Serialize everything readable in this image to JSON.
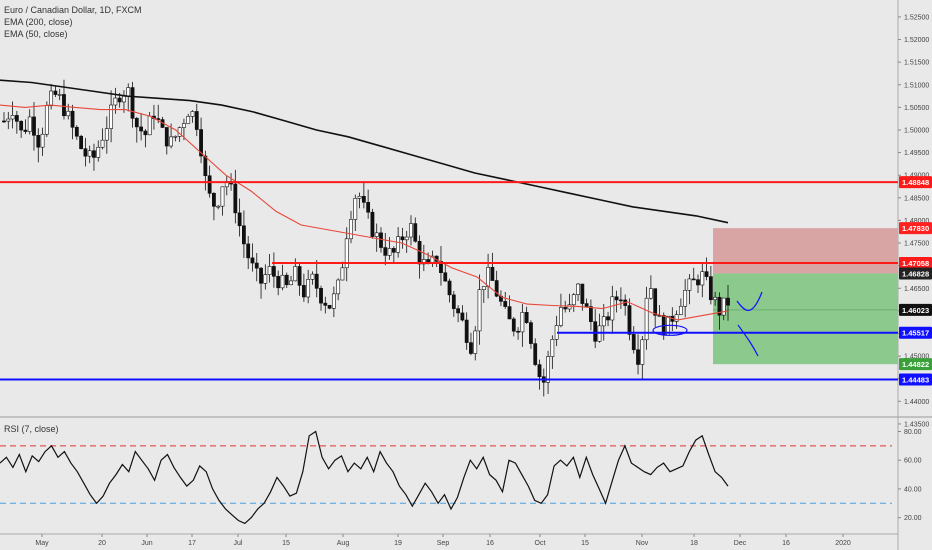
{
  "title": "Euro / Canadian Dollar, 1D, FXCM",
  "indicators": [
    "EMA (200, close)",
    "EMA (50, close)"
  ],
  "rsi_label": "RSI (7, close)",
  "colors": {
    "background": "#e9e9e9",
    "red_line": "#ff1a1a",
    "blue_line": "#1010ff",
    "ema200": "#111111",
    "ema50": "#e8473a",
    "stop_zone": "#d9a4a4",
    "target_zone": "#8cc98c",
    "rsi_upper": "#e03030",
    "rsi_lower": "#4aa0e0"
  },
  "chart_data": {
    "type": "candlestick",
    "ylim": [
      1.4372,
      1.5283
    ],
    "y_ticks": [
      "1.52500",
      "1.52000",
      "1.51500",
      "1.51000",
      "1.50500",
      "1.50000",
      "1.49500",
      "1.49000",
      "1.48500",
      "1.48000",
      "1.47500",
      "1.47000",
      "1.46500",
      "1.46000",
      "1.45500",
      "1.45000",
      "1.44500",
      "1.44000",
      "1.43500"
    ],
    "x_ticks": [
      "May",
      "20",
      "Jun",
      "17",
      "Jul",
      "15",
      "Aug",
      "19",
      "Sep",
      "16",
      "Oct",
      "15",
      "Nov",
      "18",
      "Dec",
      "16",
      "2020"
    ],
    "levels": [
      {
        "price": 1.48848,
        "label": "1.48848",
        "color": "red"
      },
      {
        "price": 1.47058,
        "label": "1.47058",
        "color": "red"
      },
      {
        "price": 1.45517,
        "label": "1.45517",
        "color": "blue"
      },
      {
        "price": 1.44483,
        "label": "1.44483",
        "color": "blue"
      }
    ],
    "position": {
      "stop": 1.4783,
      "stop_label": "1.47830",
      "entry": 1.46828,
      "entry_label": "1.46828",
      "target": 1.44822,
      "target_label": "1.44822"
    },
    "last_price": 1.46023,
    "last_price_label": "1.46023",
    "close_path": [
      1.502,
      1.505,
      1.499,
      1.503,
      1.497,
      1.506,
      1.508,
      1.504,
      1.499,
      1.495,
      1.493,
      1.498,
      1.503,
      1.508,
      1.509,
      1.501,
      1.499,
      1.504,
      1.499,
      1.497,
      1.501,
      1.505,
      1.501,
      1.486,
      1.483,
      1.49,
      1.485,
      1.476,
      1.47,
      1.466,
      1.469,
      1.467,
      1.465,
      1.468,
      1.464,
      1.467,
      1.463,
      1.461,
      1.466,
      1.48,
      1.487,
      1.481,
      1.477,
      1.474,
      1.472,
      1.476,
      1.479,
      1.472,
      1.469,
      1.472,
      1.466,
      1.461,
      1.457,
      1.452,
      1.466,
      1.468,
      1.463,
      1.458,
      1.456,
      1.461,
      1.451,
      1.443,
      1.453,
      1.461,
      1.46,
      1.465,
      1.46,
      1.455,
      1.457,
      1.462,
      1.464,
      1.455,
      1.449,
      1.468,
      1.458,
      1.456,
      1.46,
      1.464,
      1.466,
      1.468,
      1.464,
      1.46,
      1.462
    ],
    "ema200_path": [
      1.511,
      1.5105,
      1.5095,
      1.5085,
      1.5075,
      1.507,
      1.5065,
      1.5055,
      1.504,
      1.502,
      1.5,
      1.4985,
      1.4965,
      1.4945,
      1.4925,
      1.4905,
      1.489,
      1.4875,
      1.486,
      1.4845,
      1.483,
      1.482,
      1.481,
      1.4795
    ],
    "ema50_path": [
      1.5055,
      1.505,
      1.5055,
      1.505,
      1.5045,
      1.5045,
      1.503,
      1.5,
      1.495,
      1.49,
      1.4865,
      1.482,
      1.479,
      1.478,
      1.477,
      1.476,
      1.475,
      1.4725,
      1.4695,
      1.4675,
      1.463,
      1.4615,
      1.4612,
      1.461,
      1.4605,
      1.462,
      1.4595,
      1.458,
      1.459,
      1.46
    ]
  },
  "rsi_data": {
    "ylim": [
      10,
      88
    ],
    "y_ticks": [
      "80.00",
      "60.00",
      "40.00",
      "20.00"
    ],
    "upper": 70,
    "lower": 30,
    "values": [
      58,
      62,
      55,
      64,
      52,
      63,
      59,
      66,
      70,
      62,
      66,
      58,
      52,
      44,
      36,
      30,
      35,
      44,
      50,
      57,
      52,
      66,
      60,
      54,
      46,
      60,
      64,
      55,
      48,
      42,
      46,
      56,
      52,
      40,
      32,
      26,
      22,
      18,
      16,
      20,
      26,
      30,
      38,
      48,
      42,
      35,
      37,
      52,
      77,
      80,
      62,
      54,
      60,
      63,
      52,
      58,
      54,
      62,
      52,
      66,
      58,
      52,
      42,
      36,
      28,
      36,
      44,
      38,
      30,
      36,
      26,
      34,
      48,
      60,
      54,
      62,
      50,
      46,
      38,
      60,
      58,
      50,
      42,
      32,
      30,
      36,
      56,
      60,
      56,
      62,
      48,
      62,
      50,
      40,
      30,
      45,
      60,
      70,
      58,
      55,
      52,
      50,
      55,
      58,
      52,
      54,
      56,
      66,
      74,
      77,
      64,
      52,
      48,
      42
    ]
  }
}
